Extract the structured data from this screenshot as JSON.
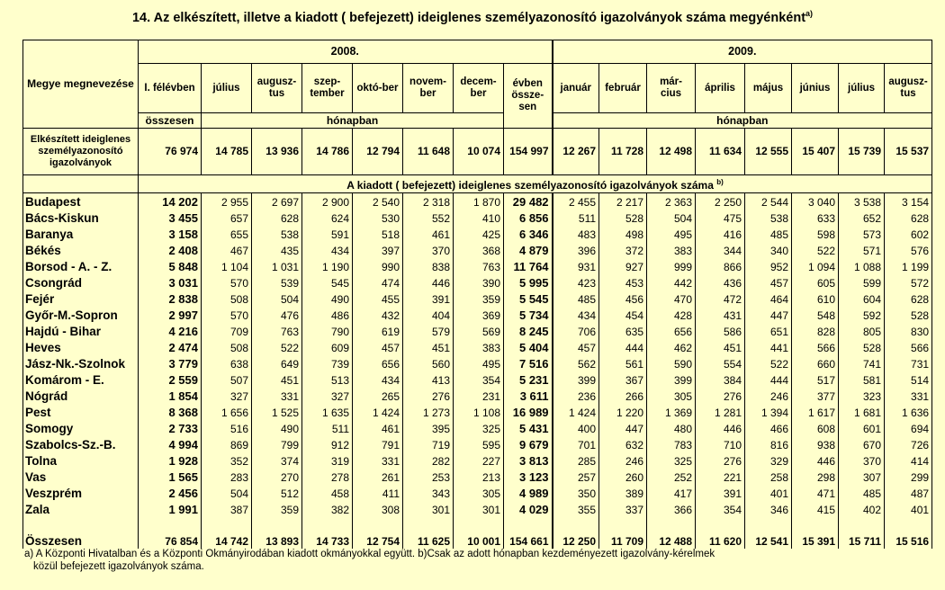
{
  "title": "14. Az elkészített, illetve a kiadott ( befejezett) ideiglenes személyazonosító  igazolványok száma megyénként",
  "title_sup": "a)",
  "header": {
    "county_label": "Megye megnevezése",
    "year_2008": "2008.",
    "year_2009": "2009.",
    "half_year": "I. félévben",
    "half_total": "összesen",
    "months_2008": [
      "július",
      "augusz-tus",
      "szep-tember",
      "októ-ber",
      "novem-ber",
      "decem-ber"
    ],
    "annual_total": "évben össze-sen",
    "months_2009": [
      "január",
      "február",
      "már-cius",
      "április",
      "május",
      "június",
      "július",
      "augusz-tus"
    ],
    "monthly_2008": "hónapban",
    "monthly_2009": "hónapban",
    "prepared_label": "Elkészített ideiglenes személyazonosító igazolványok",
    "issued_label": "A kiadott ( befejezett)  ideiglenes személyazonosító igazolványok száma",
    "issued_sup": "b)"
  },
  "prepared": [
    "76 974",
    "14 785",
    "13 936",
    "14 786",
    "12 794",
    "11 648",
    "10 074",
    "154 997",
    "12 267",
    "11 728",
    "12 498",
    "11 634",
    "12 555",
    "15 407",
    "15 739",
    "15 537"
  ],
  "rows": [
    {
      "name": "Budapest",
      "v": [
        "14 202",
        "2 955",
        "2 697",
        "2 900",
        "2 540",
        "2 318",
        "1 870",
        "29 482",
        "2 455",
        "2 217",
        "2 363",
        "2 250",
        "2 544",
        "3 040",
        "3 538",
        "3 154"
      ]
    },
    {
      "name": "Bács-Kiskun",
      "v": [
        "3 455",
        "657",
        "628",
        "624",
        "530",
        "552",
        "410",
        "6 856",
        "511",
        "528",
        "504",
        "475",
        "538",
        "633",
        "652",
        "628"
      ]
    },
    {
      "name": "Baranya",
      "v": [
        "3 158",
        "655",
        "538",
        "591",
        "518",
        "461",
        "425",
        "6 346",
        "483",
        "498",
        "495",
        "416",
        "485",
        "598",
        "573",
        "602"
      ]
    },
    {
      "name": "Békés",
      "v": [
        "2 408",
        "467",
        "435",
        "434",
        "397",
        "370",
        "368",
        "4 879",
        "396",
        "372",
        "383",
        "344",
        "340",
        "522",
        "571",
        "576"
      ]
    },
    {
      "name": "Borsod - A. - Z.",
      "v": [
        "5 848",
        "1 104",
        "1 031",
        "1 190",
        "990",
        "838",
        "763",
        "11 764",
        "931",
        "927",
        "999",
        "866",
        "952",
        "1 094",
        "1 088",
        "1 199"
      ]
    },
    {
      "name": "Csongrád",
      "v": [
        "3 031",
        "570",
        "539",
        "545",
        "474",
        "446",
        "390",
        "5 995",
        "423",
        "453",
        "442",
        "436",
        "457",
        "605",
        "599",
        "572"
      ]
    },
    {
      "name": "Fejér",
      "v": [
        "2 838",
        "508",
        "504",
        "490",
        "455",
        "391",
        "359",
        "5 545",
        "485",
        "456",
        "470",
        "472",
        "464",
        "610",
        "604",
        "628"
      ]
    },
    {
      "name": "Győr-M.-Sopron",
      "v": [
        "2 997",
        "570",
        "476",
        "486",
        "432",
        "404",
        "369",
        "5 734",
        "434",
        "454",
        "428",
        "431",
        "447",
        "548",
        "592",
        "528"
      ]
    },
    {
      "name": "Hajdú - Bihar",
      "v": [
        "4 216",
        "709",
        "763",
        "790",
        "619",
        "579",
        "569",
        "8 245",
        "706",
        "635",
        "656",
        "586",
        "651",
        "828",
        "805",
        "830"
      ]
    },
    {
      "name": "Heves",
      "v": [
        "2 474",
        "508",
        "522",
        "609",
        "457",
        "451",
        "383",
        "5 404",
        "457",
        "444",
        "462",
        "451",
        "441",
        "566",
        "528",
        "566"
      ]
    },
    {
      "name": "Jász-Nk.-Szolnok",
      "v": [
        "3 779",
        "638",
        "649",
        "739",
        "656",
        "560",
        "495",
        "7 516",
        "562",
        "561",
        "590",
        "554",
        "522",
        "660",
        "741",
        "731"
      ]
    },
    {
      "name": "Komárom - E.",
      "v": [
        "2 559",
        "507",
        "451",
        "513",
        "434",
        "413",
        "354",
        "5 231",
        "399",
        "367",
        "399",
        "384",
        "444",
        "517",
        "581",
        "514"
      ]
    },
    {
      "name": "Nógrád",
      "v": [
        "1 854",
        "327",
        "331",
        "327",
        "265",
        "276",
        "231",
        "3 611",
        "236",
        "266",
        "305",
        "276",
        "246",
        "377",
        "323",
        "331"
      ]
    },
    {
      "name": "Pest",
      "v": [
        "8 368",
        "1 656",
        "1 525",
        "1 635",
        "1 424",
        "1 273",
        "1 108",
        "16 989",
        "1 424",
        "1 220",
        "1 369",
        "1 281",
        "1 394",
        "1 617",
        "1 681",
        "1 636"
      ]
    },
    {
      "name": "Somogy",
      "v": [
        "2 733",
        "516",
        "490",
        "511",
        "461",
        "395",
        "325",
        "5 431",
        "400",
        "447",
        "480",
        "446",
        "466",
        "608",
        "601",
        "694"
      ]
    },
    {
      "name": "Szabolcs-Sz.-B.",
      "v": [
        "4 994",
        "869",
        "799",
        "912",
        "791",
        "719",
        "595",
        "9 679",
        "701",
        "632",
        "783",
        "710",
        "816",
        "938",
        "670",
        "726"
      ]
    },
    {
      "name": "Tolna",
      "v": [
        "1 928",
        "352",
        "374",
        "319",
        "331",
        "282",
        "227",
        "3 813",
        "285",
        "246",
        "325",
        "276",
        "329",
        "446",
        "370",
        "414"
      ]
    },
    {
      "name": "Vas",
      "v": [
        "1 565",
        "283",
        "270",
        "278",
        "261",
        "253",
        "213",
        "3 123",
        "257",
        "260",
        "252",
        "221",
        "258",
        "298",
        "307",
        "299"
      ]
    },
    {
      "name": "Veszprém",
      "v": [
        "2 456",
        "504",
        "512",
        "458",
        "411",
        "343",
        "305",
        "4 989",
        "350",
        "389",
        "417",
        "391",
        "401",
        "471",
        "485",
        "487"
      ]
    },
    {
      "name": "Zala",
      "v": [
        "1 991",
        "387",
        "359",
        "382",
        "308",
        "301",
        "301",
        "4 029",
        "355",
        "337",
        "366",
        "354",
        "346",
        "415",
        "402",
        "401"
      ]
    }
  ],
  "total": {
    "name": "Összesen",
    "v": [
      "76 854",
      "14 742",
      "13 893",
      "14 733",
      "12 754",
      "11 625",
      "10 001",
      "154 661",
      "12 250",
      "11 709",
      "12 488",
      "11 620",
      "12 541",
      "15 391",
      "15 711",
      "15 516"
    ]
  },
  "notes": {
    "line1": "a) A Központi Hivatalban és a Központi Okmányirodában kiadott okmányokkal együtt. b)Csak az adott hónapban kezdeményezett igazolvány-kérelmek",
    "line2": "közül befejezett igazolványok száma."
  }
}
